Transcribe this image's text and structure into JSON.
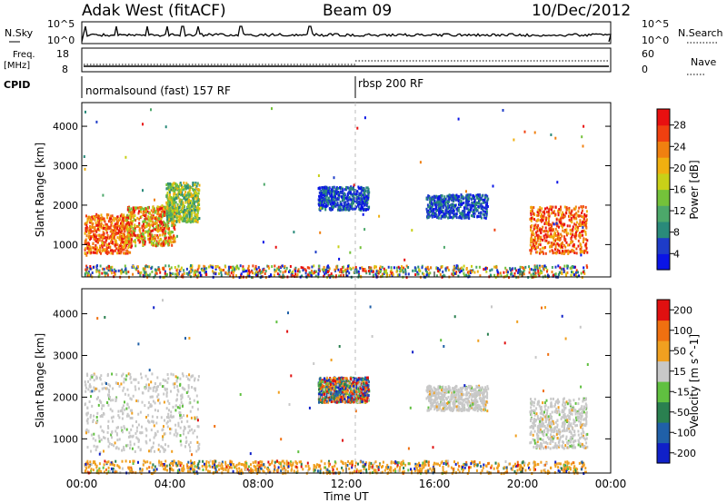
{
  "header": {
    "station": "Adak West (fitACF)",
    "beam": "Beam 09",
    "date": "10/Dec/2012"
  },
  "top_panels": {
    "nsky_label": "N.Sky",
    "nsearch_label": "N.Search",
    "freq_label_1": "Freq.",
    "freq_label_2": "[MHz]",
    "nave_label": "Nave",
    "cpid_label": "CPID",
    "nsky_ticks": [
      "10^5",
      "10^0"
    ],
    "nsearch_ticks": [
      "10^5",
      "10^0"
    ],
    "freq_ticks": [
      "18",
      "8"
    ],
    "nave_ticks": [
      "60",
      "0"
    ],
    "programs": [
      {
        "name": "normalsound (fast) 157 RF",
        "start_hour": 0
      },
      {
        "name": "rbsp 200 RF",
        "start_hour": 12
      }
    ]
  },
  "chart_data": [
    {
      "type": "heatmap",
      "title": "Power",
      "xlabel": "",
      "ylabel": "Slant Range [km]",
      "x_range_hours": [
        0,
        24
      ],
      "y_range_km": [
        180,
        4600
      ],
      "y_ticks": [
        "1000",
        "2000",
        "3000",
        "4000"
      ],
      "colorbar_label": "Power [dB]",
      "colorbar_ticks": [
        "28",
        "24",
        "20",
        "16",
        "12",
        "8",
        "4"
      ],
      "colorscale": [
        "#0a14e6",
        "#1e3cc8",
        "#2a8a7a",
        "#4ca86a",
        "#74c23a",
        "#c8d018",
        "#f0b010",
        "#f08010",
        "#f04010",
        "#e81010"
      ],
      "regions": [
        {
          "t": [
            0.1,
            2.2
          ],
          "r": [
            800,
            1800
          ],
          "level": "high"
        },
        {
          "t": [
            2.0,
            4.2
          ],
          "r": [
            1000,
            2000
          ],
          "level": "mid-high"
        },
        {
          "t": [
            3.8,
            5.3
          ],
          "r": [
            1600,
            2600
          ],
          "level": "mid"
        },
        {
          "t": [
            10.7,
            13.0
          ],
          "r": [
            1900,
            2500
          ],
          "level": "low"
        },
        {
          "t": [
            15.6,
            18.4
          ],
          "r": [
            1700,
            2300
          ],
          "level": "low"
        },
        {
          "t": [
            20.3,
            22.9
          ],
          "r": [
            800,
            2000
          ],
          "level": "high"
        },
        {
          "t": [
            0.1,
            22.9
          ],
          "r": [
            200,
            500
          ],
          "level": "mixed"
        }
      ]
    },
    {
      "type": "heatmap",
      "title": "Velocity",
      "xlabel": "Time UT",
      "ylabel": "Slant Range [km]",
      "x_range_hours": [
        0,
        24
      ],
      "y_range_km": [
        180,
        4600
      ],
      "x_ticks": [
        "00:00",
        "04:00",
        "08:00",
        "12:00",
        "16:00",
        "20:00",
        "00:00"
      ],
      "y_ticks": [
        "1000",
        "2000",
        "3000",
        "4000"
      ],
      "colorbar_label": "Velocity [m s^-1]",
      "colorbar_ticks": [
        "200",
        "100",
        "50",
        "15",
        "-15",
        "-50",
        "-100",
        "-200"
      ],
      "colorscale": [
        "#1020c8",
        "#2060a8",
        "#2a8050",
        "#60c040",
        "#c8c8c8",
        "#f0a020",
        "#f07010",
        "#e01010"
      ],
      "regions": [
        {
          "t": [
            0.1,
            5.3
          ],
          "r": [
            700,
            2600
          ],
          "level": "near-zero"
        },
        {
          "t": [
            10.7,
            13.0
          ],
          "r": [
            1900,
            2500
          ],
          "level": "mixed"
        },
        {
          "t": [
            15.6,
            18.4
          ],
          "r": [
            1700,
            2300
          ],
          "level": "near-zero"
        },
        {
          "t": [
            20.3,
            22.9
          ],
          "r": [
            800,
            2000
          ],
          "level": "near-zero"
        },
        {
          "t": [
            0.1,
            22.9
          ],
          "r": [
            200,
            500
          ],
          "level": "negative"
        }
      ]
    }
  ]
}
